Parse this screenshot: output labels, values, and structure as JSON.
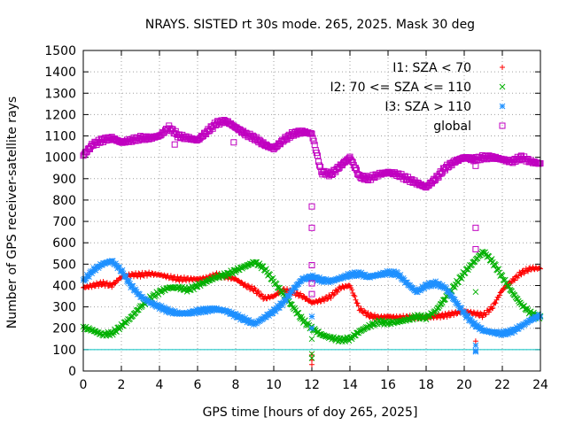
{
  "chart_data": {
    "type": "scatter",
    "title": "NRAYS. SISTED rt 30s mode. 265, 2025. Mask 30 deg",
    "xlabel": "GPS time [hours of doy 265, 2025]",
    "ylabel": "Number of GPS receiver-satellite rays",
    "xlim": [
      0,
      24
    ],
    "ylim": [
      0,
      1500
    ],
    "xticks": [
      0,
      2,
      4,
      6,
      8,
      10,
      12,
      14,
      16,
      18,
      20,
      22,
      24
    ],
    "yticks": [
      0,
      100,
      200,
      300,
      400,
      500,
      600,
      700,
      800,
      900,
      1000,
      1100,
      1200,
      1300,
      1400,
      1500
    ],
    "grid": true,
    "legend_position": "top-right",
    "reference_line": {
      "y": 100,
      "color": "#00c0c0"
    },
    "series": [
      {
        "name": "I1: SZA < 70",
        "marker": "+",
        "color": "#ff0000",
        "x": [
          0,
          0.5,
          1,
          1.5,
          2,
          2.5,
          3,
          3.5,
          4,
          4.5,
          5,
          5.5,
          6,
          6.5,
          7,
          7.5,
          8,
          8.5,
          9,
          9.5,
          10,
          10.5,
          11,
          11.5,
          12,
          12.5,
          13,
          13.5,
          14,
          14.5,
          15,
          15.5,
          16,
          16.5,
          17,
          17.5,
          18,
          18.5,
          19,
          19.5,
          20,
          20.5,
          21,
          21.5,
          22,
          22.5,
          23,
          23.5,
          24
        ],
        "values": [
          390,
          400,
          410,
          400,
          440,
          450,
          450,
          455,
          450,
          440,
          430,
          430,
          430,
          435,
          450,
          440,
          430,
          400,
          380,
          340,
          350,
          380,
          370,
          350,
          320,
          330,
          350,
          390,
          400,
          290,
          260,
          250,
          255,
          250,
          250,
          250,
          250,
          255,
          260,
          270,
          280,
          270,
          260,
          300,
          380,
          420,
          460,
          480,
          480
        ]
      },
      {
        "name": "I2: 70 <= SZA <= 110",
        "marker": "x",
        "color": "#00b000",
        "x": [
          0,
          0.5,
          1,
          1.5,
          2,
          2.5,
          3,
          3.5,
          4,
          4.5,
          5,
          5.5,
          6,
          6.5,
          7,
          7.5,
          8,
          8.5,
          9,
          9.5,
          10,
          10.5,
          11,
          11.5,
          12,
          12.5,
          13,
          13.5,
          14,
          14.5,
          15,
          15.5,
          16,
          16.5,
          17,
          17.5,
          18,
          18.5,
          19,
          19.5,
          20,
          20.5,
          21,
          21.5,
          22,
          22.5,
          23,
          23.5,
          24
        ],
        "values": [
          205,
          190,
          170,
          175,
          210,
          250,
          300,
          340,
          370,
          390,
          390,
          380,
          400,
          420,
          440,
          450,
          470,
          490,
          510,
          480,
          420,
          360,
          300,
          240,
          200,
          170,
          155,
          145,
          150,
          185,
          210,
          230,
          225,
          230,
          240,
          255,
          250,
          280,
          340,
          400,
          460,
          510,
          560,
          510,
          440,
          370,
          310,
          270,
          250
        ]
      },
      {
        "name": "I3: SZA > 110",
        "marker": "*",
        "color": "#1e90ff",
        "x": [
          0,
          0.5,
          1,
          1.5,
          2,
          2.5,
          3,
          3.5,
          4,
          4.5,
          5,
          5.5,
          6,
          6.5,
          7,
          7.5,
          8,
          8.5,
          9,
          9.5,
          10,
          10.5,
          11,
          11.5,
          12,
          12.5,
          13,
          13.5,
          14,
          14.5,
          15,
          15.5,
          16,
          16.5,
          17,
          17.5,
          18,
          18.5,
          19,
          19.5,
          20,
          20.5,
          21,
          21.5,
          22,
          22.5,
          23,
          23.5,
          24
        ],
        "values": [
          420,
          470,
          500,
          515,
          470,
          400,
          350,
          320,
          300,
          280,
          270,
          270,
          280,
          285,
          290,
          280,
          260,
          240,
          220,
          250,
          280,
          320,
          380,
          430,
          440,
          425,
          420,
          435,
          450,
          455,
          440,
          450,
          460,
          455,
          410,
          370,
          400,
          410,
          390,
          330,
          270,
          220,
          190,
          180,
          175,
          185,
          210,
          240,
          260
        ]
      },
      {
        "name": "global",
        "marker": "square",
        "color": "#c000c0",
        "x": [
          0,
          0.5,
          1,
          1.5,
          2,
          2.5,
          3,
          3.5,
          4,
          4.5,
          5,
          5.5,
          6,
          6.5,
          7,
          7.5,
          8,
          8.5,
          9,
          9.5,
          10,
          10.5,
          11,
          11.5,
          12,
          12.5,
          13,
          13.5,
          14,
          14.5,
          15,
          15.5,
          16,
          16.5,
          17,
          17.5,
          18,
          18.5,
          19,
          19.5,
          20,
          20.5,
          21,
          21.5,
          22,
          22.5,
          23,
          23.5,
          24
        ],
        "values": [
          1010,
          1060,
          1080,
          1090,
          1070,
          1080,
          1090,
          1090,
          1100,
          1140,
          1100,
          1090,
          1080,
          1120,
          1160,
          1170,
          1140,
          1110,
          1090,
          1060,
          1040,
          1080,
          1110,
          1120,
          1110,
          930,
          920,
          960,
          1000,
          910,
          900,
          920,
          930,
          920,
          900,
          880,
          860,
          900,
          950,
          980,
          1000,
          990,
          1000,
          1000,
          990,
          980,
          1000,
          980,
          970
        ]
      }
    ],
    "outliers": [
      {
        "series": "global",
        "x": 12.0,
        "values": [
          770,
          670,
          495,
          410,
          360
        ]
      },
      {
        "series": "global",
        "x": 20.6,
        "values": [
          670,
          570,
          960
        ]
      },
      {
        "series": "global",
        "x": 7.9,
        "values": [
          1070
        ]
      },
      {
        "series": "global",
        "x": 4.8,
        "values": [
          1060
        ]
      },
      {
        "series": "I1: SZA < 70",
        "x": 12.0,
        "values": [
          30,
          50,
          75
        ]
      },
      {
        "series": "I2: 70 <= SZA <= 110",
        "x": 12.0,
        "values": [
          60,
          80,
          150
        ]
      },
      {
        "series": "I3: SZA > 110",
        "x": 12.0,
        "values": [
          200,
          255
        ]
      },
      {
        "series": "I3: SZA > 110",
        "x": 20.6,
        "values": [
          90,
          95,
          120
        ]
      },
      {
        "series": "I2: 70 <= SZA <= 110",
        "x": 20.6,
        "values": [
          370
        ]
      },
      {
        "series": "I1: SZA < 70",
        "x": 20.6,
        "values": [
          140
        ]
      }
    ]
  }
}
